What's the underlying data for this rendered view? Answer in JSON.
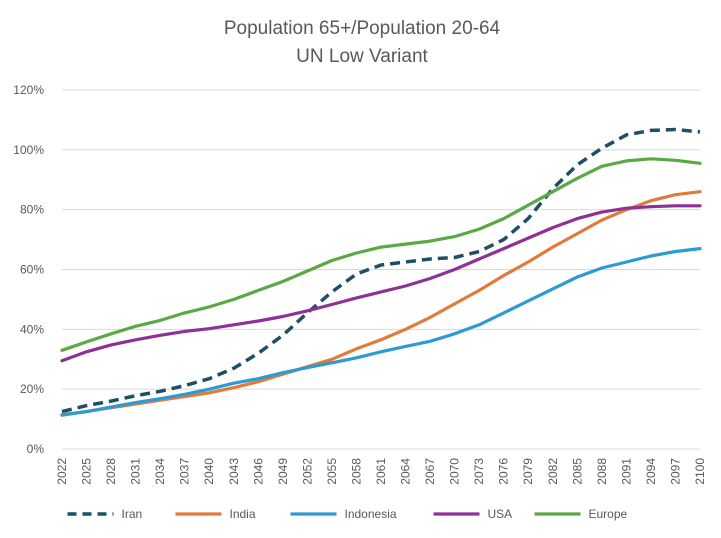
{
  "chart_data": {
    "type": "line",
    "title": "Population 65+/Population 20-64",
    "subtitle": "UN Low Variant",
    "xlabel": "",
    "ylabel": "",
    "xlim": [
      2022,
      2100
    ],
    "ylim": [
      0,
      120
    ],
    "y_ticks": [
      0,
      20,
      40,
      60,
      80,
      100,
      120
    ],
    "y_tick_labels": [
      "0%",
      "20%",
      "40%",
      "60%",
      "80%",
      "100%",
      "120%"
    ],
    "x_ticks": [
      2022,
      2025,
      2028,
      2031,
      2034,
      2037,
      2040,
      2043,
      2046,
      2049,
      2052,
      2055,
      2058,
      2061,
      2064,
      2067,
      2070,
      2073,
      2076,
      2079,
      2082,
      2085,
      2088,
      2091,
      2094,
      2097,
      2100
    ],
    "x_tick_labels": [
      "2022",
      "2025",
      "2028",
      "2031",
      "2034",
      "2037",
      "2040",
      "2043",
      "2046",
      "2049",
      "2052",
      "2055",
      "2058",
      "2061",
      "2064",
      "2067",
      "2070",
      "2073",
      "2076",
      "2079",
      "2082",
      "2085",
      "2088",
      "2091",
      "2094",
      "2097",
      "2100"
    ],
    "grid": "horizontal",
    "legend_position": "bottom",
    "series": [
      {
        "name": "Iran",
        "color": "#1f4e67",
        "dashed": true,
        "x": [
          2022,
          2025,
          2028,
          2031,
          2034,
          2037,
          2040,
          2043,
          2046,
          2049,
          2052,
          2055,
          2058,
          2061,
          2064,
          2067,
          2070,
          2073,
          2076,
          2079,
          2082,
          2085,
          2088,
          2091,
          2094,
          2097,
          2100
        ],
        "values": [
          12.5,
          14.5,
          16,
          17.8,
          19.3,
          21.2,
          23.5,
          27,
          32,
          38,
          45.5,
          52.5,
          58.5,
          61.5,
          62.5,
          63.5,
          64,
          66,
          70,
          77,
          87,
          95,
          100.5,
          105,
          106.5,
          106.8,
          106
        ]
      },
      {
        "name": "India",
        "color": "#e07b39",
        "dashed": false,
        "x": [
          2022,
          2025,
          2028,
          2031,
          2034,
          2037,
          2040,
          2043,
          2046,
          2049,
          2052,
          2055,
          2058,
          2061,
          2064,
          2067,
          2070,
          2073,
          2076,
          2079,
          2082,
          2085,
          2088,
          2091,
          2094,
          2097,
          2100
        ],
        "values": [
          11.5,
          12.5,
          13.8,
          15,
          16.3,
          17.5,
          18.8,
          20.5,
          22.5,
          25,
          27.5,
          30,
          33.5,
          36.5,
          40,
          44,
          48.5,
          53,
          58,
          62.5,
          67.5,
          72,
          76.5,
          80,
          83,
          85,
          86
        ]
      },
      {
        "name": "Indonesia",
        "color": "#2b9bd1",
        "dashed": false,
        "x": [
          2022,
          2025,
          2028,
          2031,
          2034,
          2037,
          2040,
          2043,
          2046,
          2049,
          2052,
          2055,
          2058,
          2061,
          2064,
          2067,
          2070,
          2073,
          2076,
          2079,
          2082,
          2085,
          2088,
          2091,
          2094,
          2097,
          2100
        ],
        "values": [
          11.3,
          12.5,
          14,
          15.5,
          16.8,
          18.3,
          20,
          22,
          23.5,
          25.5,
          27.2,
          28.8,
          30.5,
          32.5,
          34.3,
          36,
          38.5,
          41.5,
          45.5,
          49.5,
          53.5,
          57.5,
          60.5,
          62.5,
          64.5,
          66,
          67
        ]
      },
      {
        "name": "USA",
        "color": "#8e3196",
        "dashed": false,
        "x": [
          2022,
          2025,
          2028,
          2031,
          2034,
          2037,
          2040,
          2043,
          2046,
          2049,
          2052,
          2055,
          2058,
          2061,
          2064,
          2067,
          2070,
          2073,
          2076,
          2079,
          2082,
          2085,
          2088,
          2091,
          2094,
          2097,
          2100
        ],
        "values": [
          29.5,
          32.5,
          34.8,
          36.5,
          38,
          39.3,
          40.2,
          41.5,
          42.8,
          44.3,
          46.2,
          48.3,
          50.5,
          52.5,
          54.5,
          57,
          60,
          63.5,
          67,
          70.5,
          74,
          77,
          79.2,
          80.5,
          81,
          81.3,
          81.3
        ]
      },
      {
        "name": "Europe",
        "color": "#5aa846",
        "dashed": false,
        "x": [
          2022,
          2025,
          2028,
          2031,
          2034,
          2037,
          2040,
          2043,
          2046,
          2049,
          2052,
          2055,
          2058,
          2061,
          2064,
          2067,
          2070,
          2073,
          2076,
          2079,
          2082,
          2085,
          2088,
          2091,
          2094,
          2097,
          2100
        ],
        "values": [
          33,
          35.8,
          38.5,
          41,
          43,
          45.5,
          47.5,
          50,
          53,
          56,
          59.5,
          63,
          65.5,
          67.5,
          68.5,
          69.5,
          71,
          73.5,
          77,
          81.5,
          86,
          90.5,
          94.5,
          96.3,
          97,
          96.5,
          95.5
        ]
      }
    ]
  }
}
